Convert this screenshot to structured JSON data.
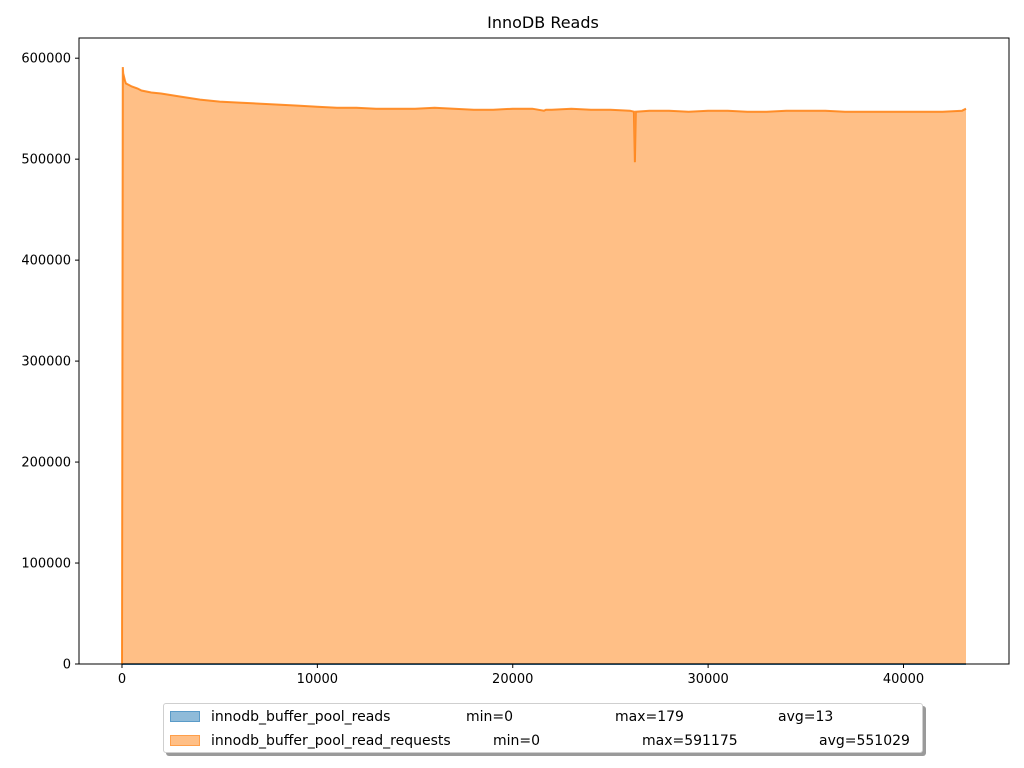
{
  "chart_data": {
    "type": "area",
    "title": "InnoDB Reads",
    "xlabel": "",
    "ylabel": "",
    "xlim": [
      -2200,
      45400
    ],
    "ylim": [
      0,
      620000
    ],
    "xticks": [
      0,
      10000,
      20000,
      30000,
      40000
    ],
    "yticks": [
      0,
      100000,
      200000,
      300000,
      400000,
      500000,
      600000
    ],
    "grid": false,
    "legend_position": "bottom-center",
    "series": [
      {
        "name": "innodb_buffer_pool_reads",
        "min": "min=0",
        "max": "max=179",
        "avg": "avg=13",
        "color": "#1f77b4",
        "x": [
          0,
          43200
        ],
        "y": [
          0,
          0
        ]
      },
      {
        "name": "innodb_buffer_pool_read_requests",
        "min": "min=0",
        "max": "max=591175",
        "avg": "avg=551029",
        "color": "#ff7f0e",
        "x": [
          0,
          40,
          60,
          150,
          200,
          300,
          500,
          800,
          1000,
          1500,
          2000,
          3000,
          4000,
          5000,
          6000,
          7000,
          8000,
          9000,
          10000,
          11000,
          12000,
          13000,
          14000,
          15000,
          16000,
          17000,
          18000,
          19000,
          20000,
          21000,
          21600,
          21700,
          22000,
          23000,
          24000,
          25000,
          26000,
          26200,
          26250,
          26300,
          27000,
          28000,
          29000,
          30000,
          31000,
          32000,
          33000,
          34000,
          35000,
          36000,
          37000,
          38000,
          39000,
          40000,
          41000,
          42000,
          43000,
          43200
        ],
        "y": [
          0,
          591175,
          585000,
          578000,
          575000,
          574000,
          572000,
          570000,
          568000,
          566000,
          565000,
          562000,
          559000,
          557000,
          556000,
          555000,
          554000,
          553000,
          552000,
          551000,
          551000,
          550000,
          550000,
          550000,
          551000,
          550000,
          549000,
          549000,
          550000,
          550000,
          548000,
          549000,
          549000,
          550000,
          549000,
          549000,
          548000,
          547000,
          497000,
          547000,
          548000,
          548000,
          547000,
          548000,
          548000,
          547000,
          547000,
          548000,
          548000,
          548000,
          547000,
          547000,
          547000,
          547000,
          547000,
          547000,
          548000,
          550000
        ]
      }
    ]
  }
}
